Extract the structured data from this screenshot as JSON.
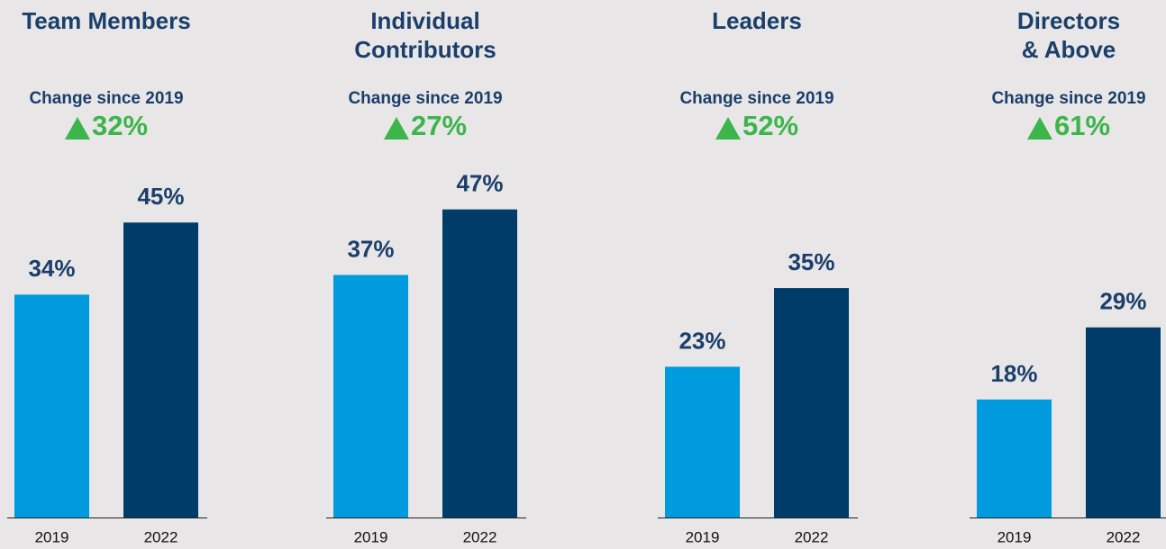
{
  "chart_data": [
    {
      "type": "bar",
      "title": [
        "Team Members"
      ],
      "subtitle": "Change since 2019",
      "annotation": "32%",
      "categories": [
        "2019",
        "2022"
      ],
      "values": [
        34,
        45
      ],
      "value_labels": [
        "34%",
        "45%"
      ],
      "colors": [
        "#009bde",
        "#003c69"
      ],
      "ylim": [
        0,
        60
      ]
    },
    {
      "type": "bar",
      "title": [
        "Individual",
        "Contributors"
      ],
      "subtitle": "Change since 2019",
      "annotation": "27%",
      "categories": [
        "2019",
        "2022"
      ],
      "values": [
        37,
        47
      ],
      "value_labels": [
        "37%",
        "47%"
      ],
      "colors": [
        "#009bde",
        "#003c69"
      ],
      "ylim": [
        0,
        60
      ]
    },
    {
      "type": "bar",
      "title": [
        "Leaders"
      ],
      "subtitle": "Change since 2019",
      "annotation": "52%",
      "categories": [
        "2019",
        "2022"
      ],
      "values": [
        23,
        35
      ],
      "value_labels": [
        "23%",
        "35%"
      ],
      "colors": [
        "#009bde",
        "#003c69"
      ],
      "ylim": [
        0,
        60
      ]
    },
    {
      "type": "bar",
      "title": [
        "Directors",
        "& Above"
      ],
      "subtitle": "Change since 2019",
      "annotation": "61%",
      "categories": [
        "2019",
        "2022"
      ],
      "values": [
        18,
        29
      ],
      "value_labels": [
        "18%",
        "29%"
      ],
      "colors": [
        "#009bde",
        "#003c69"
      ],
      "ylim": [
        0,
        60
      ]
    }
  ]
}
